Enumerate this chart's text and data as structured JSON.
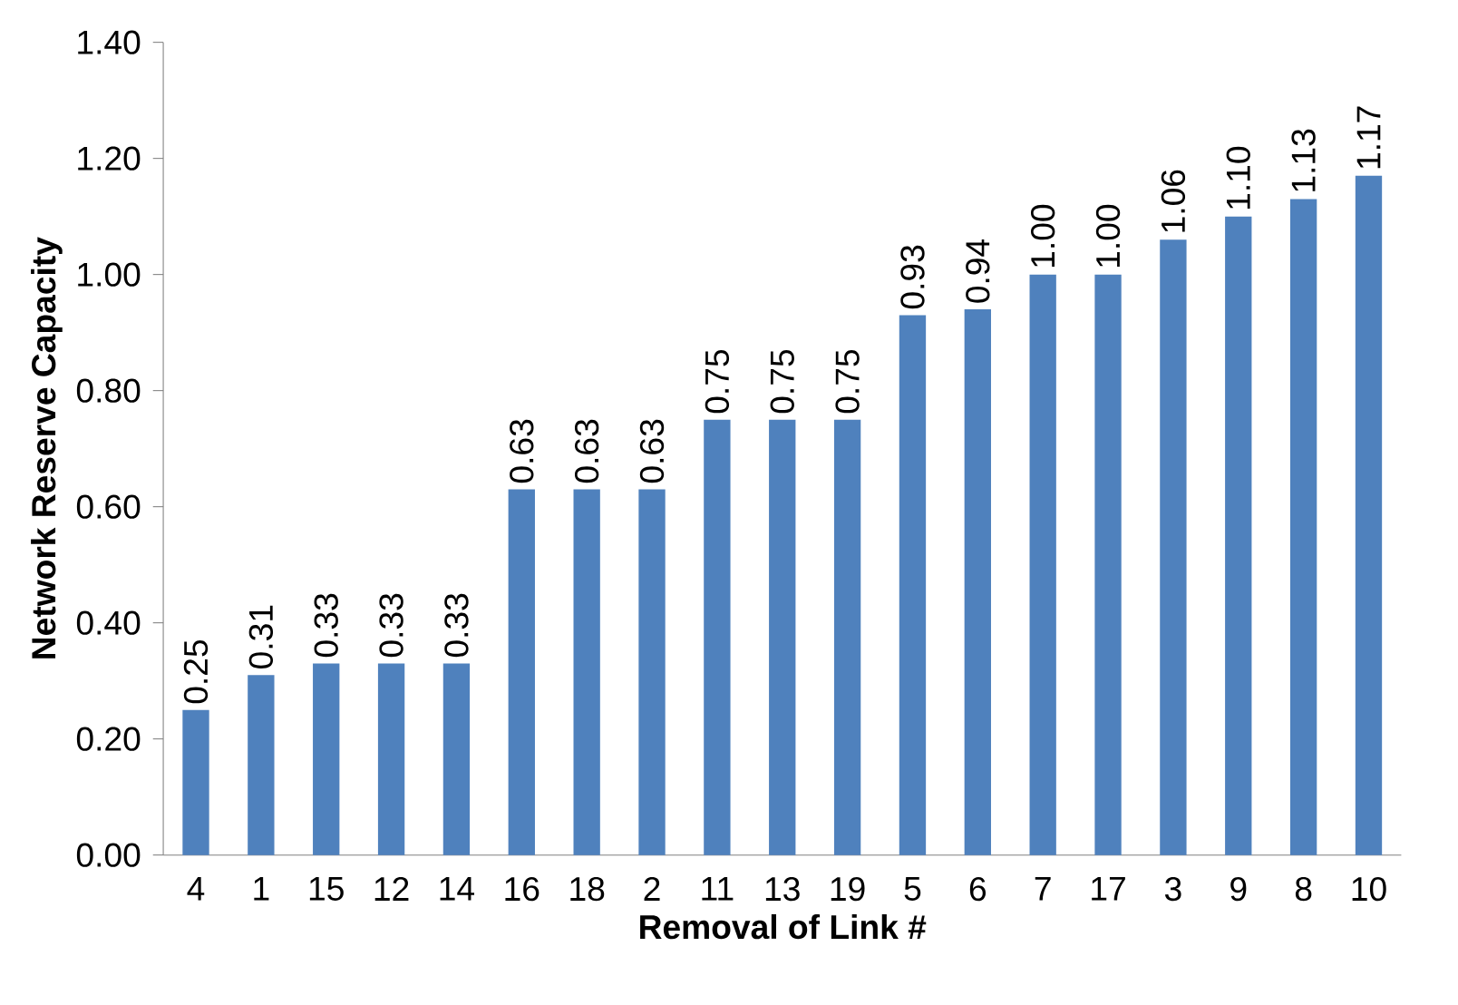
{
  "chart_data": {
    "type": "bar",
    "xlabel": "Removal of Link #",
    "ylabel": "Network Reserve Capacity",
    "categories": [
      "4",
      "1",
      "15",
      "12",
      "14",
      "16",
      "18",
      "2",
      "11",
      "13",
      "19",
      "5",
      "6",
      "7",
      "17",
      "3",
      "9",
      "8",
      "10"
    ],
    "values": [
      0.25,
      0.31,
      0.33,
      0.33,
      0.33,
      0.63,
      0.63,
      0.63,
      0.75,
      0.75,
      0.75,
      0.93,
      0.94,
      1.0,
      1.0,
      1.06,
      1.1,
      1.13,
      1.17
    ],
    "value_labels": [
      "0.25",
      "0.31",
      "0.33",
      "0.33",
      "0.33",
      "0.63",
      "0.63",
      "0.63",
      "0.75",
      "0.75",
      "0.75",
      "0.93",
      "0.94",
      "1.00",
      "1.00",
      "1.06",
      "1.10",
      "1.13",
      "1.17"
    ],
    "color": "#4f81bd",
    "ylim": [
      0,
      1.4
    ],
    "yticks": [
      {
        "value": 0,
        "label": "0.00"
      },
      {
        "value": 0.2,
        "label": "0.20"
      },
      {
        "value": 0.4,
        "label": "0.40"
      },
      {
        "value": 0.6,
        "label": "0.60"
      },
      {
        "value": 0.8,
        "label": "0.80"
      },
      {
        "value": 1.0,
        "label": "1.00"
      },
      {
        "value": 1.2,
        "label": "1.20"
      },
      {
        "value": 1.4,
        "label": "1.40"
      }
    ],
    "grid": false
  }
}
